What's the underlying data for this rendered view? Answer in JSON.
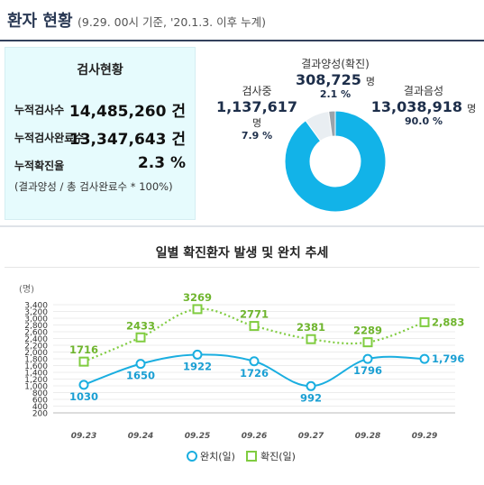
{
  "header": {
    "title": "환자 현황",
    "subtitle": "(9.29. 00시 기준, '20.1.3. 이후 누계)"
  },
  "summary": {
    "title": "검사현황",
    "rows": [
      {
        "label": "누적검사수",
        "value": "14,485,260 건"
      },
      {
        "label": "누적검사완료수",
        "value": "13,347,643 건"
      },
      {
        "label": "누적확진율",
        "value": "2.3 %"
      }
    ],
    "note": "(결과양성 / 총 검사완료수 * 100%)"
  },
  "donut": {
    "positive": {
      "name": "결과양성(확진)",
      "value": "308,725",
      "unit": "명",
      "pct": "2.1 %",
      "fraction": 0.021,
      "color": "#9aa3ab"
    },
    "testing": {
      "name": "검사중",
      "value": "1,137,617",
      "unit": "명",
      "pct": "7.9 %",
      "fraction": 0.079,
      "color": "#e9eef2"
    },
    "negative": {
      "name": "결과음성",
      "value": "13,038,918",
      "unit": "명",
      "pct": "90.0 %",
      "fraction": 0.9,
      "color": "#12b3e8"
    }
  },
  "chart_data": {
    "type": "line",
    "title": "일별 확진환자 발생 및 완치 추세",
    "ylabel": "(명)",
    "ylim": [
      200,
      3400
    ],
    "yticks": [
      "3,400",
      "3,200",
      "3,000",
      "2,800",
      "2,600",
      "2,400",
      "2,200",
      "2,000",
      "1,800",
      "1,600",
      "1,400",
      "1,200",
      "1,000",
      "800",
      "600",
      "400",
      "200"
    ],
    "ytick_values": [
      3400,
      3200,
      3000,
      2800,
      2600,
      2400,
      2200,
      2000,
      1800,
      1600,
      1400,
      1200,
      1000,
      800,
      600,
      400,
      200
    ],
    "categories": [
      "09.23",
      "09.24",
      "09.25",
      "09.26",
      "09.27",
      "09.28",
      "09.29"
    ],
    "series": [
      {
        "name": "완치(일)",
        "values": [
          1030,
          1650,
          1922,
          1726,
          992,
          1796,
          1796
        ],
        "labels": [
          "1030",
          "1650",
          "1922",
          "1726",
          "992",
          "1796",
          "1,796"
        ],
        "color": "#1aaee0"
      },
      {
        "name": "확진(일)",
        "values": [
          1716,
          2433,
          3269,
          2771,
          2381,
          2289,
          2883
        ],
        "labels": [
          "1716",
          "2433",
          "3269",
          "2771",
          "2381",
          "2289",
          "2,883"
        ],
        "color": "#80cc40"
      }
    ],
    "legend_position": "bottom"
  }
}
